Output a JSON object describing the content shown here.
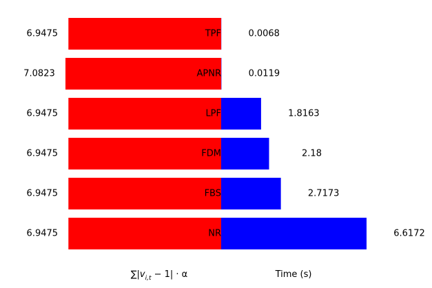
{
  "chart_data": {
    "type": "bar",
    "orientation": "horizontal",
    "layout": "butterfly",
    "categories": [
      "TPF",
      "APNR",
      "LPF",
      "FDM",
      "FBS",
      "NR"
    ],
    "series": [
      {
        "name": "",
        "axis_label": "∑|v_{i,t} − 1| · α",
        "color": "#ff0000",
        "values": [
          6.9475,
          7.0823,
          6.9475,
          6.9475,
          6.9475,
          6.9475
        ],
        "value_labels": [
          "6.9475",
          "7.0823",
          "6.9475",
          "6.9475",
          "6.9475",
          "6.9475"
        ]
      },
      {
        "name": "",
        "axis_label": "Time (s)",
        "color": "#0000ff",
        "values": [
          0.0068,
          0.0119,
          1.8163,
          2.18,
          2.7173,
          6.6172
        ],
        "value_labels": [
          "0.0068",
          "0.0119",
          "1.8163",
          "2.18",
          "2.7173",
          "6.6172"
        ]
      }
    ],
    "left_xlabel_parts": {
      "sum": "∑|",
      "v": "v",
      "sub": "i,t",
      "rest": " − 1| · α"
    },
    "right_xlabel": "Time (s)",
    "grid": false,
    "legend": "none"
  }
}
